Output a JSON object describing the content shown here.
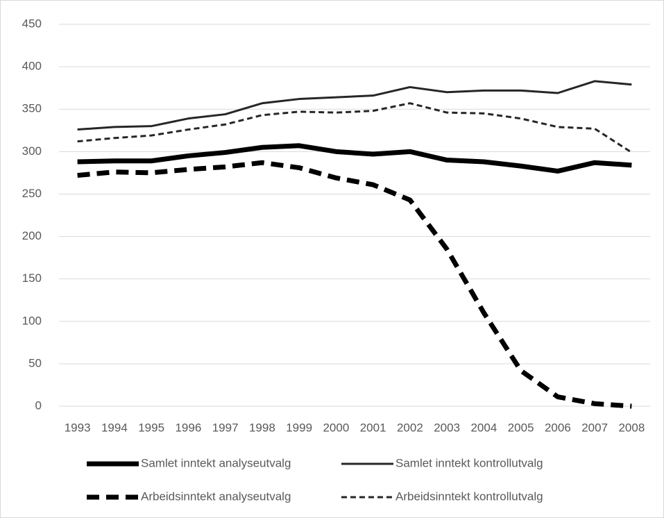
{
  "chart_data": {
    "type": "line",
    "categories": [
      "1993",
      "1994",
      "1995",
      "1996",
      "1997",
      "1998",
      "1999",
      "2000",
      "2001",
      "2002",
      "2003",
      "2004",
      "2005",
      "2006",
      "2007",
      "2008"
    ],
    "series": [
      {
        "name": "Samlet inntekt analyseutvalg",
        "color": "#000000",
        "style": "solid",
        "weight": "thick",
        "values": [
          288,
          289,
          289,
          295,
          299,
          305,
          307,
          300,
          297,
          300,
          290,
          288,
          283,
          277,
          287,
          284
        ]
      },
      {
        "name": "Samlet inntekt kontrollutvalg",
        "color": "#262626",
        "style": "solid",
        "weight": "thin",
        "values": [
          326,
          329,
          330,
          339,
          344,
          357,
          362,
          364,
          366,
          376,
          370,
          372,
          372,
          369,
          383,
          379
        ]
      },
      {
        "name": "Arbeidsinntekt analyseutvalg",
        "color": "#000000",
        "style": "dashed",
        "weight": "thick",
        "values": [
          272,
          276,
          275,
          279,
          282,
          287,
          281,
          269,
          261,
          243,
          185,
          110,
          42,
          11,
          3,
          0
        ]
      },
      {
        "name": "Arbeidsinntekt kontrollutvalg",
        "color": "#262626",
        "style": "dashed",
        "weight": "thin",
        "values": [
          312,
          316,
          319,
          326,
          332,
          343,
          347,
          346,
          348,
          357,
          346,
          345,
          339,
          329,
          327,
          299
        ]
      }
    ],
    "ylim": [
      0,
      450
    ],
    "yticks": [
      0,
      50,
      100,
      150,
      200,
      250,
      300,
      350,
      400,
      450
    ],
    "grid": true,
    "legend": "bottom"
  }
}
